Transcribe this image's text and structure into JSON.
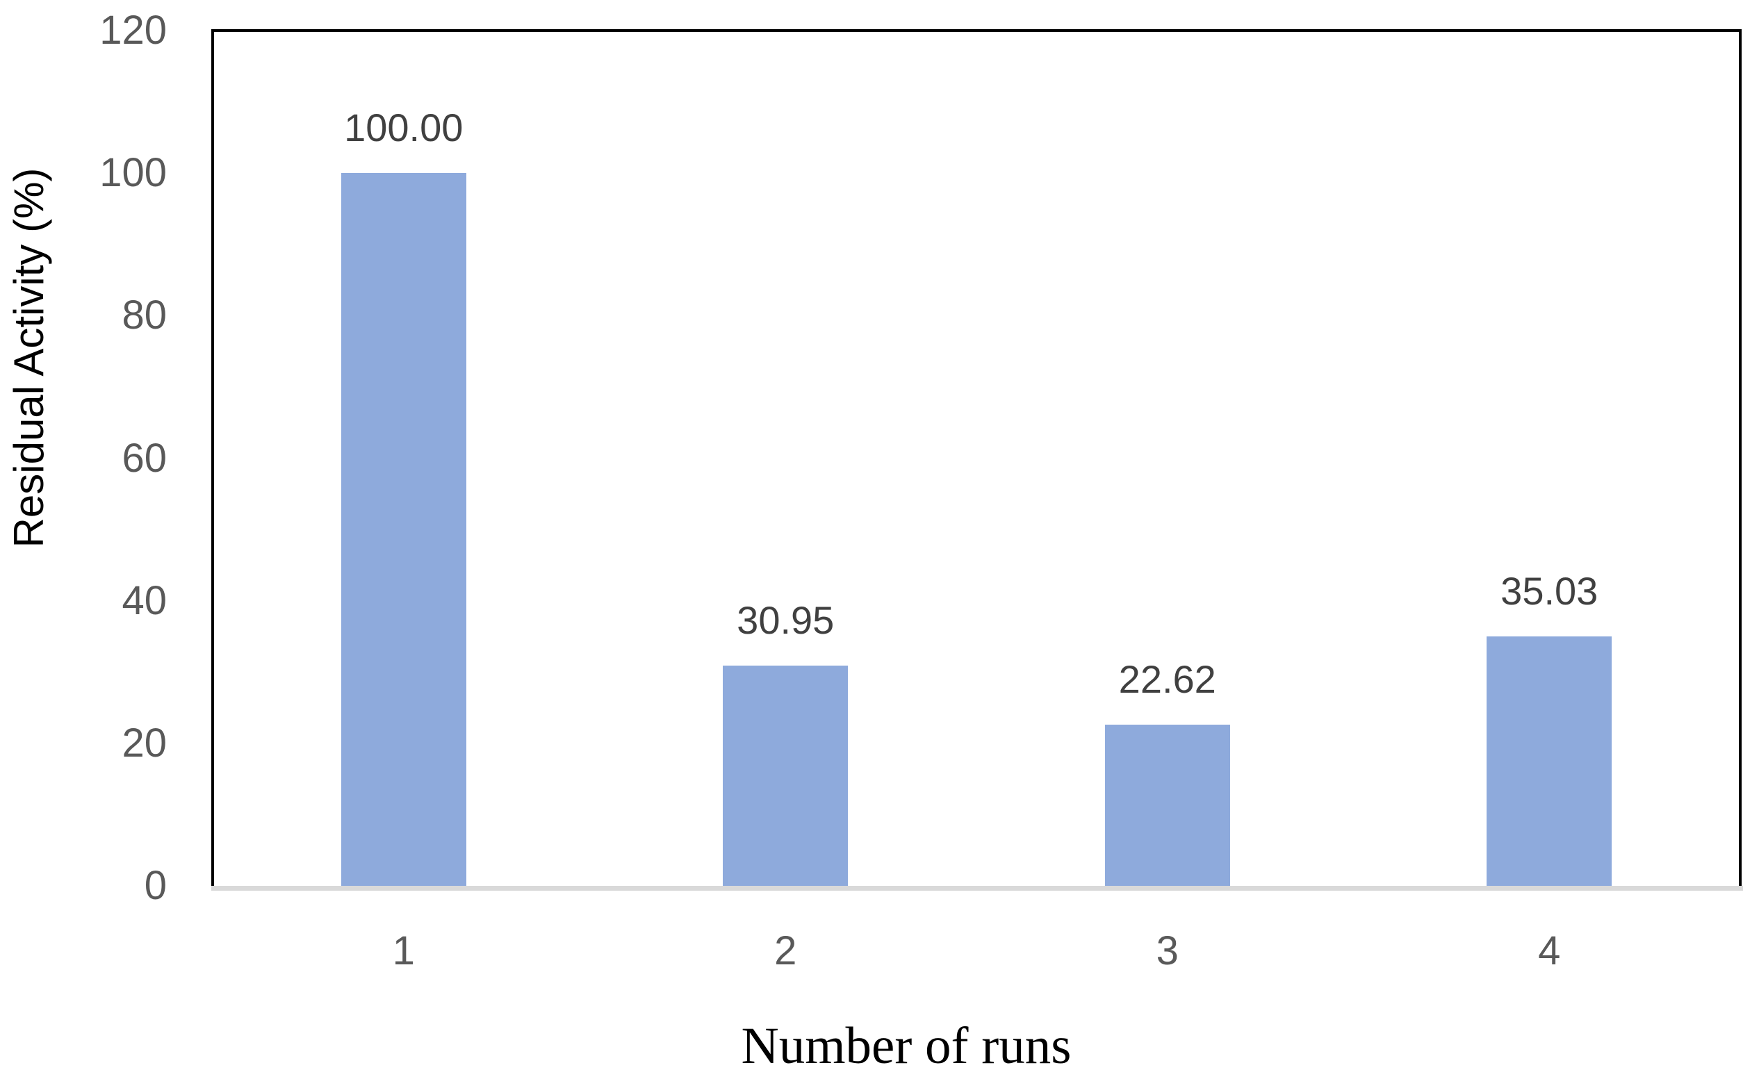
{
  "chart_data": {
    "type": "bar",
    "title": "",
    "categories": [
      "1",
      "2",
      "3",
      "4"
    ],
    "values": [
      100.0,
      30.95,
      22.62,
      35.03
    ],
    "data_labels": [
      "100.00",
      "30.95",
      "22.62",
      "35.03"
    ],
    "xlabel": "Number of runs",
    "ylabel": "Residual Activity (%)",
    "ylim": [
      0,
      120
    ],
    "yticks": [
      0,
      20,
      40,
      60,
      80,
      100,
      120
    ],
    "grid": false,
    "legend": "none",
    "colors": {
      "bar": "#8EAADC",
      "tick_label": "#595959",
      "data_label": "#404040",
      "axis_line": "#D9D9D9",
      "plot_border": "#000000"
    }
  }
}
